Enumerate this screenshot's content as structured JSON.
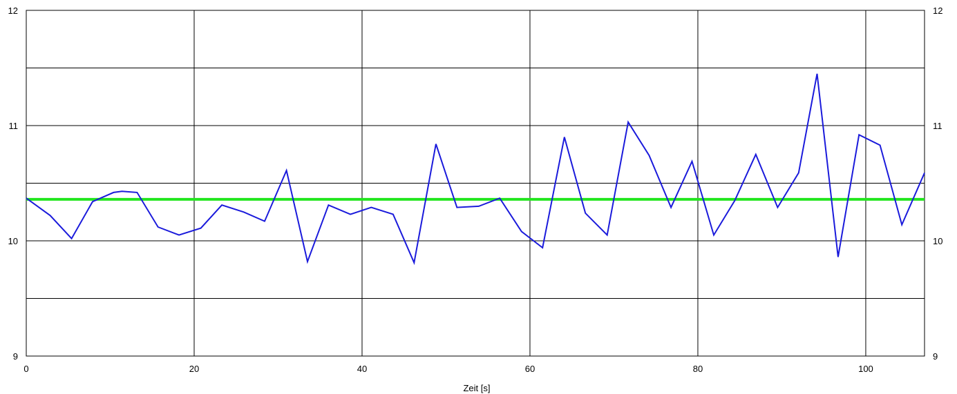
{
  "chart_data": {
    "type": "line",
    "title": "",
    "xlabel": "Zeit [s]",
    "ylabel": "",
    "xlim": [
      0,
      107
    ],
    "ylim": [
      9,
      12
    ],
    "x_ticks": [
      "0",
      "20",
      "40",
      "60",
      "80",
      "100"
    ],
    "y_ticks_left": [
      "9",
      "10",
      "11",
      "12"
    ],
    "y_ticks_right": [
      "9",
      "10",
      "11",
      "12"
    ],
    "grid": true,
    "legend": "none",
    "series": [
      {
        "color": "#1a1adb",
        "x": [
          0,
          2.85,
          5.4,
          7.9,
          10.4,
          11.4,
          13.2,
          15.7,
          18.2,
          20.8,
          23.3,
          25.9,
          28.4,
          31,
          33.5,
          36,
          38.6,
          41.1,
          43.7,
          46.2,
          48.8,
          51.3,
          53.9,
          56.4,
          59,
          61.5,
          64.1,
          66.6,
          69.2,
          71.7,
          74.2,
          76.8,
          79.3,
          81.9,
          84.4,
          86.9,
          89.5,
          92,
          94.2,
          96.7,
          99.2,
          101.7,
          104.3,
          107
        ],
        "y": [
          10.37,
          10.22,
          10.02,
          10.34,
          10.42,
          10.43,
          10.42,
          10.12,
          10.05,
          10.11,
          10.31,
          10.25,
          10.17,
          10.61,
          9.82,
          10.31,
          10.23,
          10.29,
          10.23,
          9.81,
          10.84,
          10.29,
          10.3,
          10.37,
          10.08,
          9.94,
          10.9,
          10.24,
          10.05,
          11.03,
          10.74,
          10.29,
          10.69,
          10.05,
          10.35,
          10.75,
          10.29,
          10.59,
          11.45,
          9.86,
          10.92,
          10.83,
          10.14,
          10.59
        ]
      },
      {
        "color": "#22e61e",
        "x": [
          0,
          107
        ],
        "y": [
          10.36,
          10.36
        ]
      }
    ]
  }
}
